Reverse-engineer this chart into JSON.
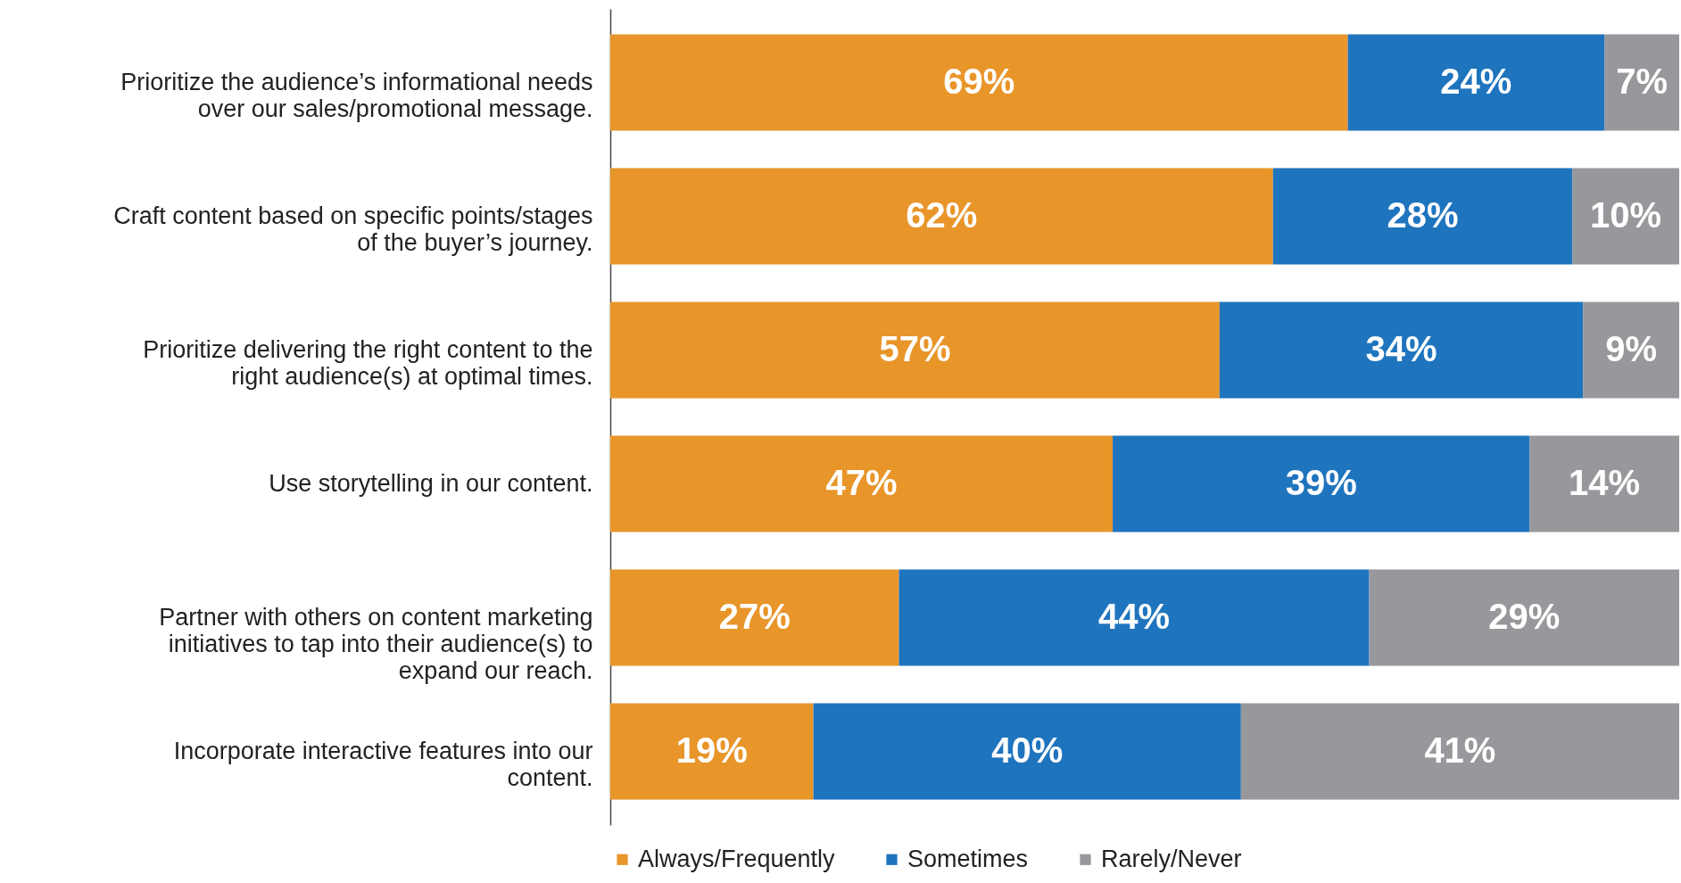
{
  "chart_data": {
    "type": "bar",
    "orientation": "horizontal",
    "stacked": true,
    "data_labels": true,
    "categories": [
      "Prioritize the audience’s informational needs over our sales/promotional message.",
      "Craft content based on specific points/stages of the buyer’s journey.",
      "Prioritize delivering the right content to the right audience(s) at optimal times.",
      "Use storytelling in our content.",
      "Partner with others on content marketing initiatives to tap into their audience(s) to expand our reach.",
      "Incorporate interactive features into our content."
    ],
    "series": [
      {
        "name": "Always/Frequently",
        "color": "#e8952a",
        "values": [
          69,
          62,
          57,
          47,
          27,
          19
        ],
        "value_labels": [
          "69%",
          "62%",
          "57%",
          "47%",
          "27%",
          "19%"
        ]
      },
      {
        "name": "Sometimes",
        "color": "#1f74be",
        "values": [
          24,
          28,
          34,
          39,
          44,
          40
        ],
        "value_labels": [
          "24%",
          "28%",
          "34%",
          "39%",
          "44%",
          "40%"
        ]
      },
      {
        "name": "Rarely/Never",
        "color": "#97989b",
        "values": [
          7,
          10,
          9,
          14,
          29,
          41
        ],
        "value_labels": [
          "7%",
          "10%",
          "9%",
          "14%",
          "29%",
          "41%"
        ]
      }
    ],
    "xlim": [
      0,
      100
    ],
    "tick_labels": "y",
    "legend": "bottom left"
  }
}
